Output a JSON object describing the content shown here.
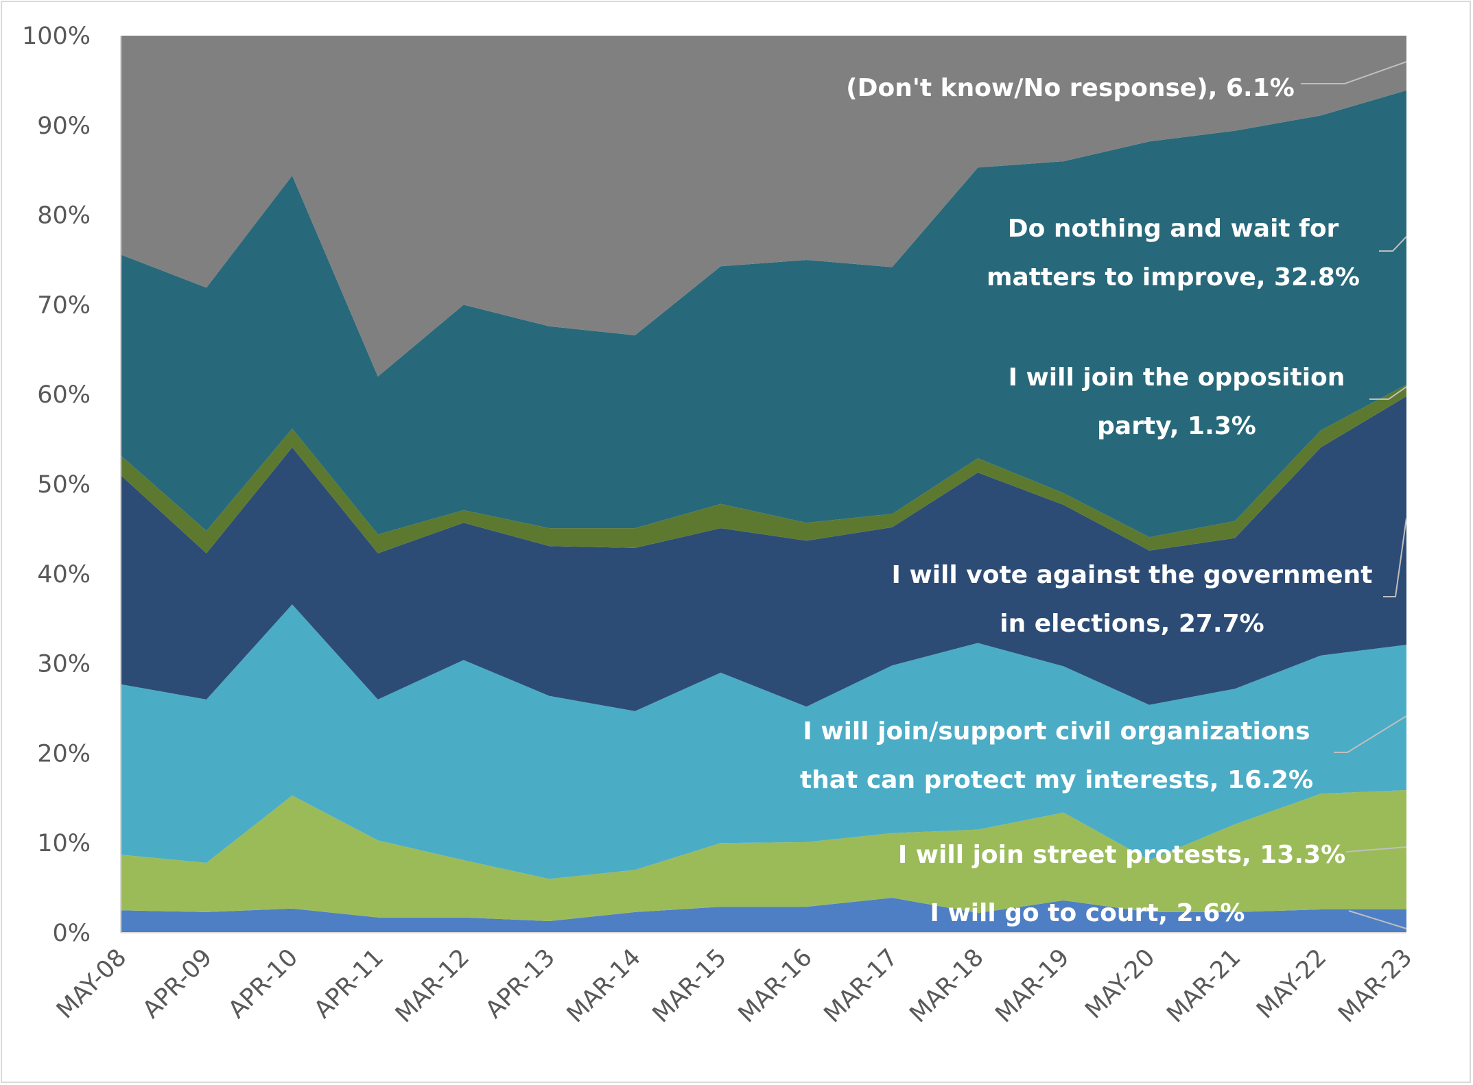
{
  "chart_data": {
    "type": "area",
    "stacked": true,
    "normalized": true,
    "title": "",
    "xlabel": "",
    "ylabel": "",
    "ylim": [
      0,
      100
    ],
    "y_ticks": [
      "0%",
      "10%",
      "20%",
      "30%",
      "40%",
      "50%",
      "60%",
      "70%",
      "80%",
      "90%",
      "100%"
    ],
    "categories": [
      "MAY-08",
      "APR-09",
      "APR-10",
      "APR-11",
      "MAR-12",
      "APR-13",
      "MAR-14",
      "MAR-15",
      "MAR-16",
      "MAR-17",
      "MAR-18",
      "MAR-19",
      "MAY-20",
      "MAR-21",
      "MAY-22",
      "MAR-23"
    ],
    "grid": false,
    "legend": "none",
    "series": [
      {
        "name": "I will go to court",
        "color": "#4e7fc4",
        "values": [
          2.5,
          2.3,
          2.7,
          1.7,
          1.7,
          1.3,
          2.3,
          2.9,
          2.9,
          3.9,
          2.2,
          3.6,
          2.3,
          2.3,
          2.6,
          2.6
        ]
      },
      {
        "name": "I will join street protests",
        "color": "#9bbb59",
        "values": [
          6.2,
          5.5,
          12.6,
          8.6,
          6.4,
          4.7,
          4.7,
          7.1,
          7.2,
          7.2,
          9.3,
          9.8,
          5.8,
          9.8,
          12.9,
          13.3
        ]
      },
      {
        "name": "I will join/support civil organizations that can protect my interests",
        "color": "#4bacc6",
        "values": [
          19.0,
          18.2,
          21.3,
          15.7,
          22.3,
          20.4,
          17.7,
          19.0,
          15.1,
          18.7,
          20.8,
          16.3,
          17.3,
          15.1,
          15.4,
          16.2
        ]
      },
      {
        "name": "I will vote against the government in elections",
        "color": "#2c4c76",
        "values": [
          23.3,
          16.3,
          17.5,
          16.3,
          15.3,
          16.7,
          18.2,
          16.1,
          18.5,
          15.4,
          19.0,
          18.0,
          17.2,
          16.8,
          23.2,
          27.7
        ]
      },
      {
        "name": "I will join the opposition party",
        "color": "#5d7930",
        "values": [
          2.2,
          2.5,
          2.1,
          2.1,
          1.4,
          2.0,
          2.2,
          2.7,
          2.0,
          1.5,
          1.6,
          1.3,
          1.5,
          1.9,
          1.9,
          1.3
        ]
      },
      {
        "name": "Do nothing and wait for matters to improve",
        "color": "#27697a",
        "values": [
          22.4,
          27.1,
          28.2,
          17.6,
          22.9,
          22.5,
          21.5,
          26.5,
          29.3,
          27.5,
          32.4,
          37.0,
          44.1,
          43.5,
          35.1,
          32.8
        ]
      },
      {
        "name": "(Don't know/No response)",
        "color": "#808080",
        "values": [
          24.4,
          28.1,
          15.6,
          38.0,
          30.0,
          32.4,
          33.4,
          25.7,
          25.0,
          25.8,
          14.7,
          14.0,
          11.8,
          10.6,
          8.9,
          6.1
        ]
      }
    ],
    "annotations": [
      {
        "lines": [
          "(Don't know/No response), 6.1%"
        ]
      },
      {
        "lines": [
          "Do nothing and wait for",
          "matters to improve, 32.8%"
        ]
      },
      {
        "lines": [
          "I will join the opposition",
          "party, 1.3%"
        ]
      },
      {
        "lines": [
          "I will vote against the government",
          "in elections, 27.7%"
        ]
      },
      {
        "lines": [
          "I will join/support civil organizations",
          "that can protect my interests, 16.2%"
        ]
      },
      {
        "lines": [
          "I will join street protests, 13.3%"
        ]
      },
      {
        "lines": [
          "I will go to court, 2.6%"
        ]
      }
    ]
  }
}
